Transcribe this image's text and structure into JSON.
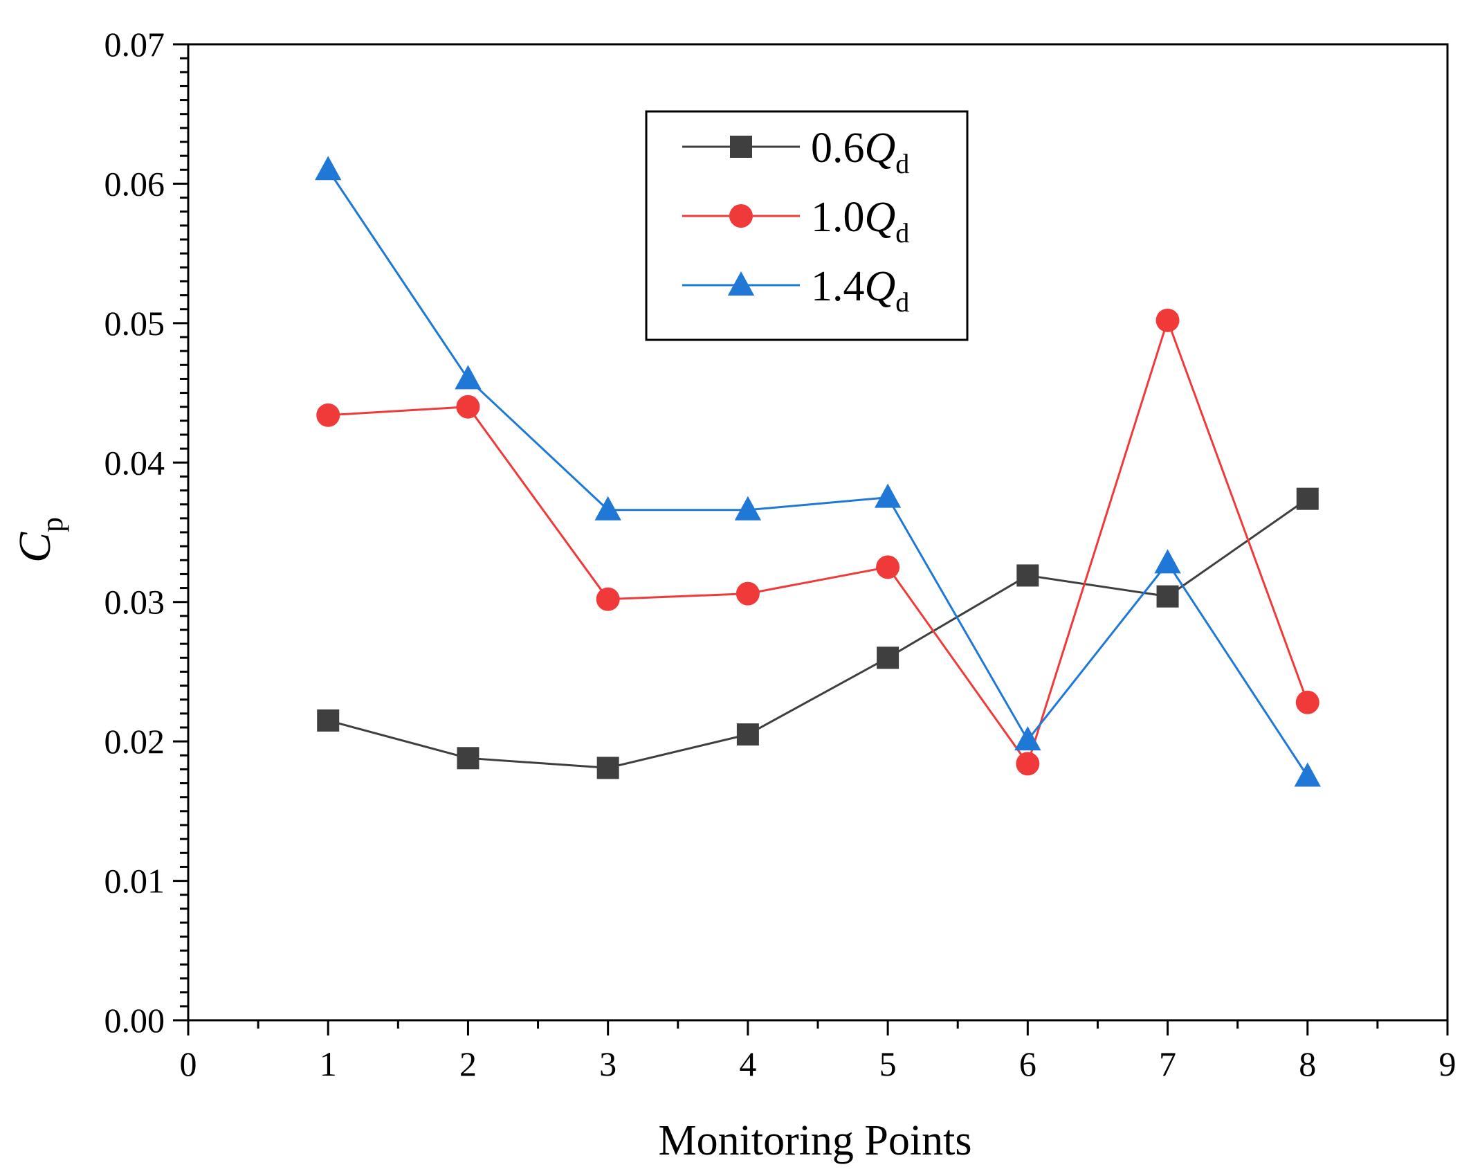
{
  "chart_data": {
    "type": "line",
    "title": "",
    "xlabel": "Monitoring Points",
    "ylabel": {
      "main": "C",
      "sub": "p"
    },
    "xlim": [
      0,
      9
    ],
    "ylim": [
      0,
      0.07
    ],
    "xticks": [
      0,
      1,
      2,
      3,
      4,
      5,
      6,
      7,
      8,
      9
    ],
    "xtick_labels": [
      "0",
      "1",
      "2",
      "3",
      "4",
      "5",
      "6",
      "7",
      "8",
      "9"
    ],
    "yticks": [
      0,
      0.01,
      0.02,
      0.03,
      0.04,
      0.05,
      0.06,
      0.07
    ],
    "ytick_labels": [
      "0.00",
      "0.01",
      "0.02",
      "0.03",
      "0.04",
      "0.05",
      "0.06",
      "0.07"
    ],
    "x": [
      1,
      2,
      3,
      4,
      5,
      6,
      7,
      8
    ],
    "grid": false,
    "legend_position": "top-center",
    "series": [
      {
        "name": "0.6Q_d",
        "label_main": "0.6",
        "label_q": "Q",
        "label_sub": "d",
        "color": "#3f3f3f",
        "marker": "square",
        "values": [
          0.0215,
          0.0188,
          0.0181,
          0.0205,
          0.026,
          0.0319,
          0.0304,
          0.0374
        ]
      },
      {
        "name": "1.0Q_d",
        "label_main": "1.0",
        "label_q": "Q",
        "label_sub": "d",
        "color": "#f03a3a",
        "marker": "circle",
        "values": [
          0.0434,
          0.044,
          0.0302,
          0.0306,
          0.0325,
          0.0184,
          0.0502,
          0.0228
        ]
      },
      {
        "name": "1.4Q_d",
        "label_main": "1.4",
        "label_q": "Q",
        "label_sub": "d",
        "color": "#1f78d6",
        "marker": "triangle",
        "values": [
          0.061,
          0.046,
          0.0366,
          0.0366,
          0.0375,
          0.0201,
          0.0328,
          0.0175
        ]
      }
    ]
  }
}
